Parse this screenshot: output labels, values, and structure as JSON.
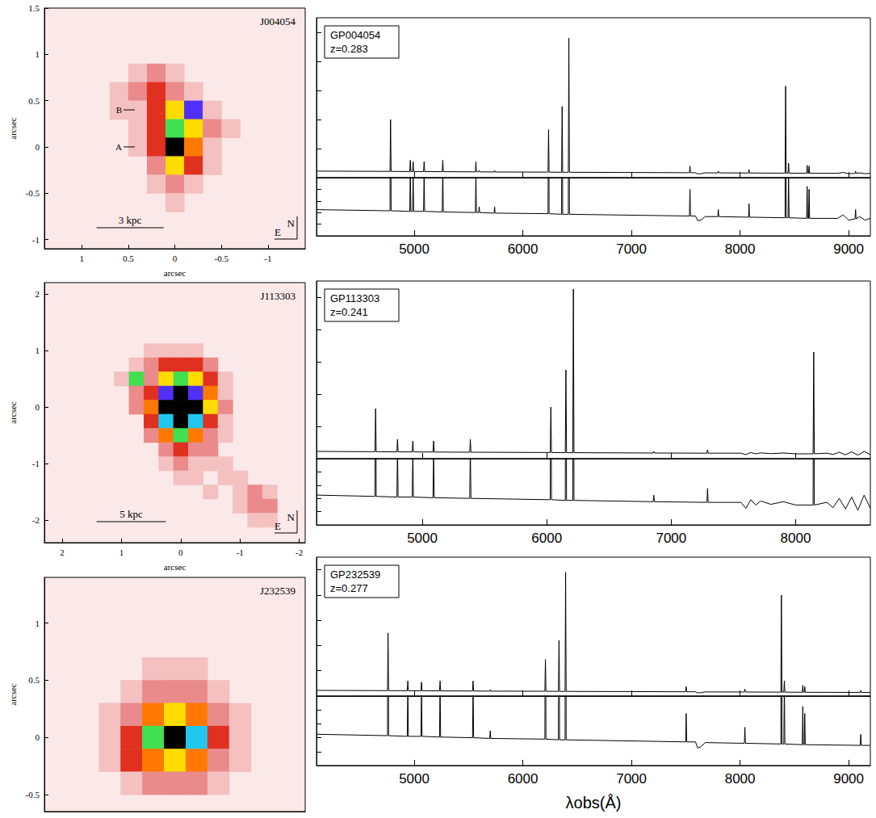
{
  "chart_data": [
    {
      "type": "heatmap",
      "title": "J004054",
      "xlabel": "arcsec",
      "ylabel": "arcsec",
      "xlim": [
        1.4,
        -1.4
      ],
      "xticks": [
        1,
        0.5,
        0,
        -0.5,
        -1
      ],
      "ylim": [
        -1.1,
        1.5
      ],
      "yticks": [
        -1,
        -0.5,
        0,
        0.5,
        1,
        1.5
      ],
      "cell": 0.2,
      "value_range": [
        0,
        9
      ],
      "cells": [
        [
          0.4,
          0.8,
          1
        ],
        [
          0.2,
          0.8,
          2
        ],
        [
          0,
          0.8,
          1
        ],
        [
          0.6,
          0.6,
          1
        ],
        [
          0.4,
          0.6,
          2
        ],
        [
          0.2,
          0.6,
          3
        ],
        [
          0,
          0.6,
          2
        ],
        [
          -0.2,
          0.6,
          1
        ],
        [
          0.6,
          0.4,
          1
        ],
        [
          0.4,
          0.4,
          1
        ],
        [
          0.2,
          0.4,
          3
        ],
        [
          0,
          0.4,
          5
        ],
        [
          -0.2,
          0.4,
          8
        ],
        [
          -0.4,
          0.4,
          1
        ],
        [
          0.4,
          0.2,
          1
        ],
        [
          0.2,
          0.2,
          3
        ],
        [
          0,
          0.2,
          6
        ],
        [
          -0.2,
          0.2,
          5
        ],
        [
          -0.4,
          0.2,
          2
        ],
        [
          -0.6,
          0.2,
          1
        ],
        [
          0.4,
          0,
          1
        ],
        [
          0.2,
          0,
          3
        ],
        [
          0,
          0,
          9
        ],
        [
          -0.2,
          0,
          4
        ],
        [
          -0.4,
          0,
          1
        ],
        [
          0.2,
          -0.2,
          2
        ],
        [
          0,
          -0.2,
          5
        ],
        [
          -0.2,
          -0.2,
          3
        ],
        [
          -0.4,
          -0.2,
          1
        ],
        [
          0.2,
          -0.4,
          1
        ],
        [
          0,
          -0.4,
          2
        ],
        [
          -0.2,
          -0.4,
          1
        ],
        [
          0,
          -0.6,
          1
        ]
      ],
      "annotations": [
        {
          "text": "B",
          "x": 0.55,
          "y": 0.4
        },
        {
          "text": "A",
          "x": 0.55,
          "y": 0
        }
      ],
      "scale_bar": {
        "label": "3 kpc",
        "length": 0.72
      },
      "compass": {
        "north": "N",
        "east": "E"
      }
    },
    {
      "type": "line",
      "title": "GP004054",
      "subtitle": "z=0.283",
      "color": "#000000",
      "tick_labels": "x",
      "xlim": [
        4100,
        9200
      ],
      "xticks": [
        5000,
        6000,
        7000,
        8000,
        9000
      ],
      "ylim": [
        0,
        1.1
      ],
      "yticks": [
        0,
        0.2,
        0.4,
        0.6,
        0.8,
        1
      ],
      "zoom_ylim": [
        0,
        0.1
      ],
      "zoom_yticks": [
        0,
        0.02,
        0.04,
        0.06,
        0.08,
        0.1
      ],
      "x": [
        4100,
        4777,
        4782,
        4787,
        4959,
        4964,
        4969,
        4985,
        4990,
        4995,
        5086,
        5091,
        5096,
        5258,
        5263,
        5268,
        5563,
        5568,
        5573,
        5593,
        5598,
        5603,
        5735,
        5740,
        5745,
        6232,
        6237,
        6242,
        6357,
        6362,
        6367,
        6419,
        6424,
        6429,
        7534,
        7539,
        7544,
        7590,
        7610,
        7640,
        7680,
        7795,
        7800,
        7805,
        8078,
        8083,
        8088,
        8415,
        8420,
        8425,
        8442,
        8447,
        8452,
        8613,
        8618,
        8623,
        8631,
        8636,
        8641,
        8900,
        8950,
        9000,
        9059,
        9064,
        9069,
        9100,
        9150,
        9200
      ],
      "values": [
        0.045,
        0.043,
        0.4,
        0.043,
        0.042,
        0.12,
        0.042,
        0.042,
        0.11,
        0.042,
        0.042,
        0.11,
        0.042,
        0.041,
        0.12,
        0.041,
        0.04,
        0.11,
        0.04,
        0.04,
        0.05,
        0.04,
        0.039,
        0.05,
        0.039,
        0.038,
        0.33,
        0.038,
        0.037,
        0.49,
        0.037,
        0.037,
        0.96,
        0.037,
        0.034,
        0.08,
        0.034,
        0.034,
        0.026,
        0.027,
        0.033,
        0.033,
        0.045,
        0.033,
        0.032,
        0.055,
        0.032,
        0.031,
        0.63,
        0.031,
        0.031,
        0.1,
        0.031,
        0.03,
        0.085,
        0.03,
        0.03,
        0.08,
        0.03,
        0.03,
        0.036,
        0.027,
        0.029,
        0.045,
        0.029,
        0.033,
        0.027,
        0.03
      ]
    },
    {
      "type": "heatmap",
      "title": "J113303",
      "xlabel": "arcsec",
      "ylabel": "arcsec",
      "xlim": [
        2.3,
        -2.1
      ],
      "xticks": [
        2,
        1,
        0,
        -1,
        -2
      ],
      "ylim": [
        -2.4,
        2.2
      ],
      "yticks": [
        -2,
        -1,
        0,
        1,
        2
      ],
      "cell": 0.25,
      "value_range": [
        0,
        9
      ],
      "cells": [
        [
          0.5,
          1,
          1
        ],
        [
          0.25,
          1,
          1
        ],
        [
          0,
          1,
          1
        ],
        [
          -0.25,
          1,
          1
        ],
        [
          0.75,
          0.75,
          1
        ],
        [
          0.5,
          0.75,
          2
        ],
        [
          0.25,
          0.75,
          3
        ],
        [
          0,
          0.75,
          3
        ],
        [
          -0.25,
          0.75,
          3
        ],
        [
          -0.5,
          0.75,
          2
        ],
        [
          1,
          0.5,
          1
        ],
        [
          0.75,
          0.5,
          6
        ],
        [
          0.5,
          0.5,
          2
        ],
        [
          0.25,
          0.5,
          5
        ],
        [
          0,
          0.5,
          6
        ],
        [
          -0.25,
          0.5,
          5
        ],
        [
          -0.5,
          0.5,
          3
        ],
        [
          -0.75,
          0.5,
          1
        ],
        [
          0.75,
          0.25,
          2
        ],
        [
          0.5,
          0.25,
          3
        ],
        [
          0.25,
          0.25,
          8
        ],
        [
          0,
          0.25,
          9
        ],
        [
          -0.25,
          0.25,
          8
        ],
        [
          -0.5,
          0.25,
          4
        ],
        [
          -0.75,
          0.25,
          1
        ],
        [
          0.75,
          0,
          2
        ],
        [
          0.5,
          0,
          4
        ],
        [
          0.25,
          0,
          9
        ],
        [
          0,
          0,
          9
        ],
        [
          -0.25,
          0,
          9
        ],
        [
          -0.5,
          0,
          5
        ],
        [
          -0.75,
          0,
          2
        ],
        [
          0.5,
          -0.25,
          3
        ],
        [
          0.25,
          -0.25,
          7
        ],
        [
          0,
          -0.25,
          9
        ],
        [
          -0.25,
          -0.25,
          7
        ],
        [
          -0.5,
          -0.25,
          3
        ],
        [
          -0.75,
          -0.25,
          1
        ],
        [
          0.5,
          -0.5,
          2
        ],
        [
          0.25,
          -0.5,
          4
        ],
        [
          0,
          -0.5,
          6
        ],
        [
          -0.25,
          -0.5,
          4
        ],
        [
          -0.5,
          -0.5,
          2
        ],
        [
          -0.75,
          -0.5,
          1
        ],
        [
          0.25,
          -0.75,
          2
        ],
        [
          0,
          -0.75,
          3
        ],
        [
          -0.25,
          -0.75,
          2
        ],
        [
          -0.5,
          -0.75,
          2
        ],
        [
          0.25,
          -1,
          1
        ],
        [
          0,
          -1,
          2
        ],
        [
          -0.25,
          -1,
          1
        ],
        [
          -0.5,
          -1,
          1
        ],
        [
          -0.75,
          -1,
          1
        ],
        [
          0,
          -1.25,
          1
        ],
        [
          -0.25,
          -1.25,
          1
        ],
        [
          -0.75,
          -1.25,
          1
        ],
        [
          -1,
          -1.25,
          1
        ],
        [
          -0.5,
          -1.5,
          1
        ],
        [
          -1,
          -1.5,
          1
        ],
        [
          -1.25,
          -1.5,
          2
        ],
        [
          -1.5,
          -1.5,
          1
        ],
        [
          -1,
          -1.75,
          1
        ],
        [
          -1.25,
          -1.75,
          2
        ],
        [
          -1.5,
          -1.75,
          2
        ],
        [
          -1.25,
          -2,
          1
        ],
        [
          -1.5,
          -2,
          1
        ]
      ],
      "scale_bar": {
        "label": "5 kpc",
        "length": 1.17
      },
      "compass": {
        "north": "N",
        "east": "E"
      }
    },
    {
      "type": "line",
      "title": "GP113303",
      "subtitle": "z=0.241",
      "color": "#000000",
      "tick_labels": "x",
      "xlim": [
        4150,
        8600
      ],
      "xticks": [
        5000,
        6000,
        7000,
        8000
      ],
      "ylim": [
        0,
        1.1
      ],
      "yticks": [
        0,
        0.2,
        0.4,
        0.6,
        0.8,
        1
      ],
      "zoom_ylim": [
        0,
        0.1
      ],
      "zoom_yticks": [
        0,
        0.02,
        0.04,
        0.06,
        0.08,
        0.1
      ],
      "x": [
        4150,
        4620,
        4625,
        4630,
        4796,
        4801,
        4806,
        4919,
        4924,
        4929,
        5086,
        5091,
        5096,
        5381,
        5386,
        5391,
        6028,
        6033,
        6038,
        6149,
        6154,
        6159,
        6209,
        6214,
        6219,
        6855,
        6860,
        6865,
        7287,
        7292,
        7297,
        7560,
        7600,
        7640,
        7680,
        7720,
        7800,
        7900,
        8000,
        8140,
        8145,
        8150,
        8250,
        8300,
        8350,
        8400,
        8450,
        8500,
        8550,
        8600
      ],
      "values": [
        0.045,
        0.043,
        0.31,
        0.043,
        0.042,
        0.12,
        0.042,
        0.042,
        0.11,
        0.042,
        0.041,
        0.11,
        0.041,
        0.04,
        0.12,
        0.04,
        0.038,
        0.32,
        0.038,
        0.037,
        0.55,
        0.037,
        0.037,
        1.05,
        0.037,
        0.035,
        0.045,
        0.035,
        0.034,
        0.055,
        0.034,
        0.034,
        0.025,
        0.038,
        0.03,
        0.036,
        0.031,
        0.035,
        0.03,
        0.03,
        0.66,
        0.03,
        0.034,
        0.026,
        0.04,
        0.024,
        0.042,
        0.022,
        0.045,
        0.025
      ]
    },
    {
      "type": "heatmap",
      "title": "J232539",
      "ylabel": "arcsec",
      "tick_labels": "y",
      "xlim": [
        1.2,
        -1.2
      ],
      "ylim": [
        -0.65,
        1.4
      ],
      "yticks": [
        -0.5,
        0,
        0.5,
        1
      ],
      "cell": 0.2,
      "value_range": [
        0,
        9
      ],
      "cells": [
        [
          0.2,
          0.6,
          1
        ],
        [
          0,
          0.6,
          1
        ],
        [
          -0.2,
          0.6,
          1
        ],
        [
          0.4,
          0.4,
          1
        ],
        [
          0.2,
          0.4,
          2
        ],
        [
          0,
          0.4,
          2
        ],
        [
          -0.2,
          0.4,
          2
        ],
        [
          -0.4,
          0.4,
          1
        ],
        [
          0.6,
          0.2,
          1
        ],
        [
          0.4,
          0.2,
          2
        ],
        [
          0.2,
          0.2,
          4
        ],
        [
          0,
          0.2,
          5
        ],
        [
          -0.2,
          0.2,
          4
        ],
        [
          -0.4,
          0.2,
          2
        ],
        [
          -0.6,
          0.2,
          1
        ],
        [
          0.6,
          0,
          1
        ],
        [
          0.4,
          0,
          3
        ],
        [
          0.2,
          0,
          6
        ],
        [
          0,
          0,
          9
        ],
        [
          -0.2,
          0,
          7
        ],
        [
          -0.4,
          0,
          3
        ],
        [
          -0.6,
          0,
          1
        ],
        [
          0.6,
          -0.2,
          1
        ],
        [
          0.4,
          -0.2,
          3
        ],
        [
          0.2,
          -0.2,
          4
        ],
        [
          0,
          -0.2,
          5
        ],
        [
          -0.2,
          -0.2,
          4
        ],
        [
          -0.4,
          -0.2,
          2
        ],
        [
          -0.6,
          -0.2,
          1
        ],
        [
          0.4,
          -0.4,
          1
        ],
        [
          0.2,
          -0.4,
          2
        ],
        [
          0,
          -0.4,
          2
        ],
        [
          -0.2,
          -0.4,
          2
        ],
        [
          -0.4,
          -0.4,
          1
        ]
      ]
    },
    {
      "type": "line",
      "title": "GP232539",
      "subtitle": "z=0.277",
      "color": "#000000",
      "tick_labels": "x",
      "xlabel": "λobs(Å)",
      "xlim": [
        4100,
        9200
      ],
      "xticks": [
        5000,
        6000,
        7000,
        8000,
        9000
      ],
      "ylim": [
        0,
        1.1
      ],
      "yticks": [
        0,
        0.2,
        0.4,
        0.6,
        0.8,
        1
      ],
      "zoom_ylim": [
        0,
        0.1
      ],
      "zoom_yticks": [
        0,
        0.02,
        0.04,
        0.06,
        0.08,
        0.1
      ],
      "x": [
        4100,
        4754,
        4759,
        4764,
        4936,
        4941,
        4946,
        5062,
        5067,
        5072,
        5233,
        5238,
        5243,
        5537,
        5542,
        5547,
        5695,
        5700,
        5705,
        6203,
        6208,
        6213,
        6328,
        6333,
        6338,
        6389,
        6394,
        6399,
        7499,
        7504,
        7509,
        7590,
        7610,
        7640,
        7680,
        8040,
        8045,
        8050,
        8376,
        8381,
        8386,
        8403,
        8408,
        8413,
        8573,
        8578,
        8583,
        8591,
        8596,
        8601,
        9107,
        9112,
        9117,
        9200
      ],
      "values": [
        0.045,
        0.043,
        0.5,
        0.043,
        0.042,
        0.12,
        0.042,
        0.042,
        0.11,
        0.042,
        0.041,
        0.12,
        0.041,
        0.04,
        0.12,
        0.04,
        0.039,
        0.05,
        0.039,
        0.038,
        0.29,
        0.038,
        0.037,
        0.44,
        0.037,
        0.037,
        0.98,
        0.037,
        0.034,
        0.075,
        0.034,
        0.034,
        0.025,
        0.027,
        0.033,
        0.032,
        0.055,
        0.032,
        0.031,
        0.8,
        0.031,
        0.031,
        0.12,
        0.031,
        0.03,
        0.085,
        0.03,
        0.03,
        0.075,
        0.03,
        0.029,
        0.045,
        0.029,
        0.029
      ]
    }
  ]
}
